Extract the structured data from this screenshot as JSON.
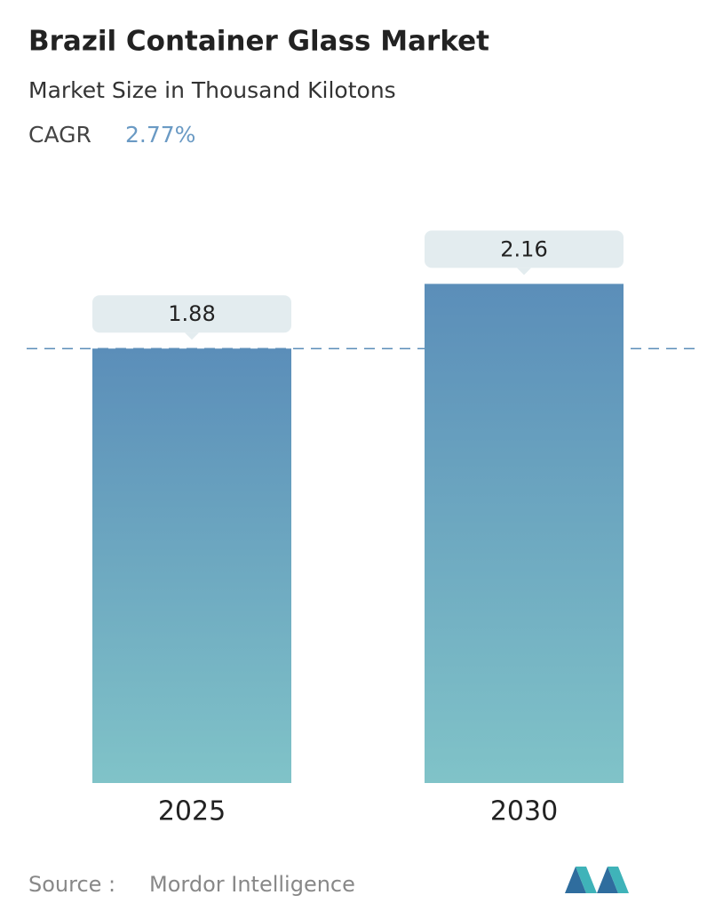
{
  "chart_data": {
    "type": "bar",
    "title": "Brazil Container Glass Market",
    "subtitle": "Market Size in Thousand Kilotons",
    "cagr_label": "CAGR",
    "cagr_value": "2.77%",
    "categories": [
      "2025",
      "2030"
    ],
    "values": [
      1.88,
      2.16
    ],
    "colors": {
      "top": "#5b8eb9",
      "bottom": "#80c3c8"
    },
    "reference_line": true,
    "source_label": "Source :",
    "source": "Mordor Intelligence"
  }
}
